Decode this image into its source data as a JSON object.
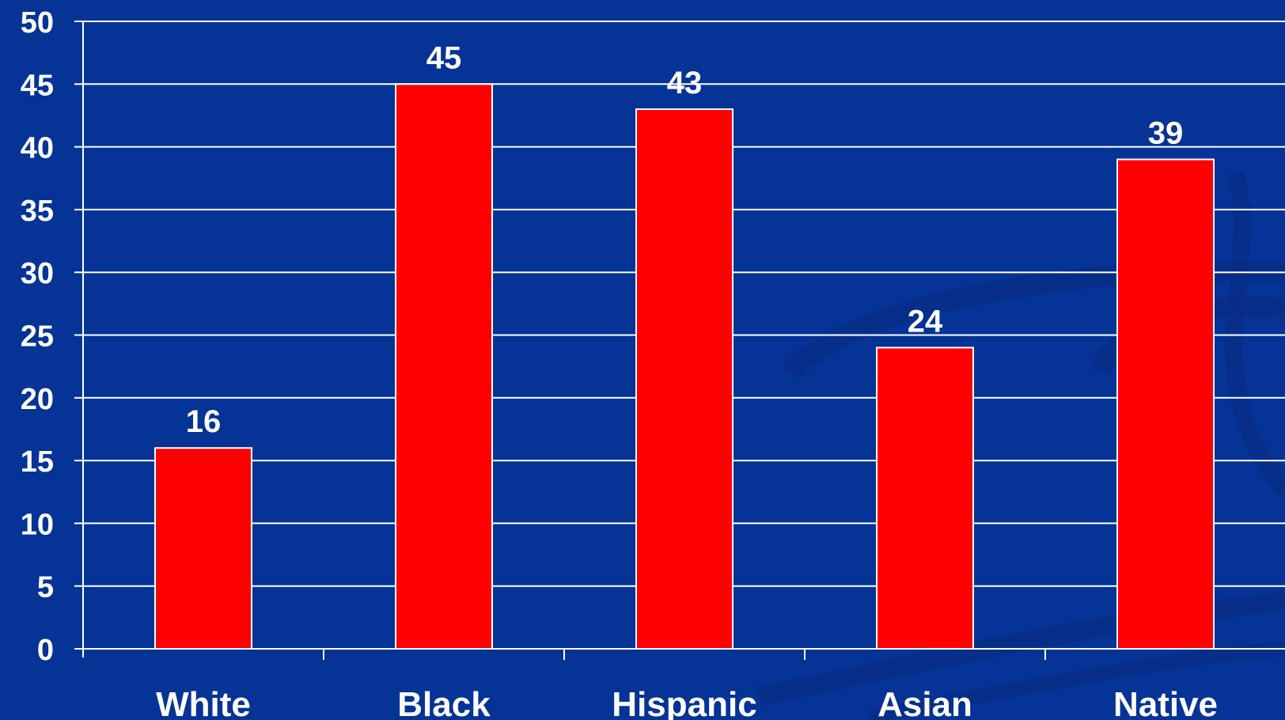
{
  "chart_data": {
    "type": "bar",
    "categories": [
      "White",
      "Black",
      "Hispanic",
      "Asian",
      "Native"
    ],
    "values": [
      16,
      45,
      43,
      24,
      39
    ],
    "ylim": [
      0,
      50
    ],
    "y_ticks": [
      0,
      5,
      10,
      15,
      20,
      25,
      30,
      35,
      40,
      45,
      50
    ],
    "grid": true,
    "data_labels": true,
    "colors": {
      "background": "#053396",
      "bar": "#ff0000",
      "bar_outline": "#ffffff",
      "grid": "#ffffff",
      "text": "#ffffff"
    }
  }
}
